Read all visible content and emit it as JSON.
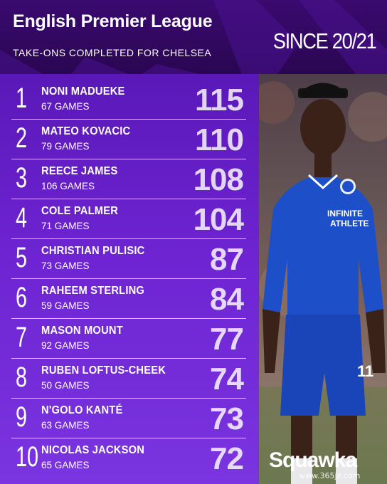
{
  "header": {
    "title": "English Premier League",
    "subtitle": "TAKE-ONS COMPLETED FOR CHELSEA",
    "since": "SINCE 20/21"
  },
  "rankings": [
    {
      "rank": "1",
      "name": "NONI MADUEKE",
      "games": "67 GAMES",
      "value": "115"
    },
    {
      "rank": "2",
      "name": "MATEO KOVACIC",
      "games": "79 GAMES",
      "value": "110"
    },
    {
      "rank": "3",
      "name": "REECE JAMES",
      "games": "106 GAMES",
      "value": "108"
    },
    {
      "rank": "4",
      "name": "COLE PALMER",
      "games": "71 GAMES",
      "value": "104"
    },
    {
      "rank": "5",
      "name": "CHRISTIAN PULISIC",
      "games": "73 GAMES",
      "value": "87"
    },
    {
      "rank": "6",
      "name": "RAHEEM STERLING",
      "games": "59 GAMES",
      "value": "84"
    },
    {
      "rank": "7",
      "name": "MASON MOUNT",
      "games": "92 GAMES",
      "value": "77"
    },
    {
      "rank": "8",
      "name": "RUBEN LOFTUS-CHEEK",
      "games": "50 GAMES",
      "value": "74"
    },
    {
      "rank": "9",
      "name": "N'GOLO KANTÉ",
      "games": "63 GAMES",
      "value": "73"
    },
    {
      "rank": "10",
      "name": "NICOLAS JACKSON",
      "games": "65 GAMES",
      "value": "72"
    }
  ],
  "photo": {
    "sponsor_line1": "INFINITE",
    "sponsor_line2": "ATHLETE",
    "shirt_number": "11"
  },
  "brand": "Squawka",
  "watermark": "www.365jz.com",
  "colors": {
    "header_bg": "#2a0652",
    "list_top": "#5a18b8",
    "list_bottom": "#7a34e0",
    "kit_blue": "#1d4fc9"
  }
}
